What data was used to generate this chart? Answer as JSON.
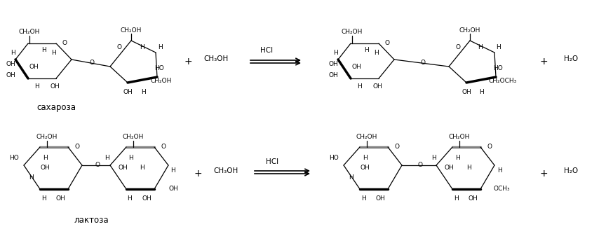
{
  "background": "#ffffff",
  "text_color": "#000000",
  "fig_width": 8.64,
  "fig_height": 3.37,
  "dpi": 100,
  "saharoza_label": "сахароза",
  "laktoza_label": "лактоза",
  "hcl_label": "HCl",
  "ch3oh_label": "CH₃OH",
  "h2o_label": "H₂O",
  "plus": "+"
}
